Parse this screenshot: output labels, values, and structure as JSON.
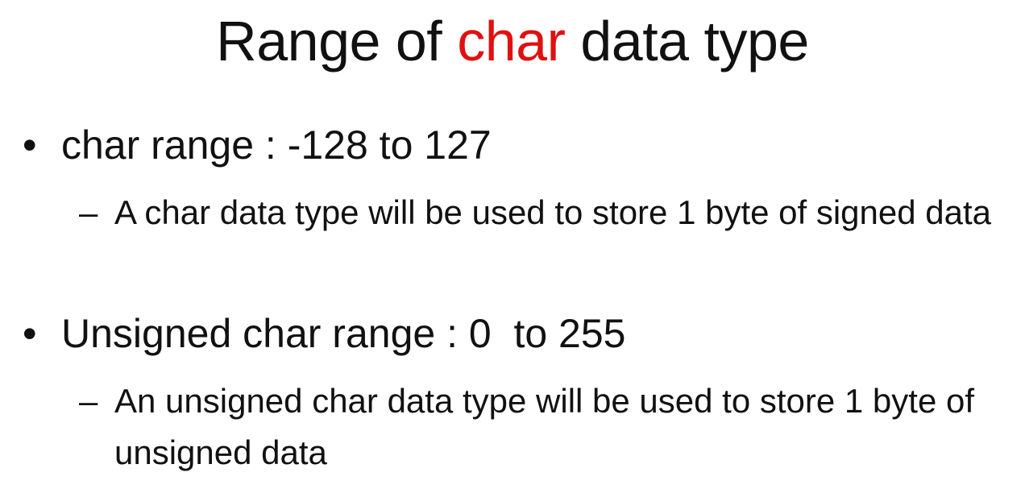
{
  "slide": {
    "title": {
      "before": "Range of ",
      "highlight": "char",
      "after": " data type",
      "highlight_color": "#e01010"
    },
    "bullets": [
      {
        "marker": "•",
        "text": "char range : -128 to 127",
        "sub": {
          "marker": "–",
          "text": "A char data type will be used to store 1 byte of signed data"
        }
      },
      {
        "marker": "•",
        "text": "Unsigned char range : 0  to 255",
        "sub": {
          "marker": "–",
          "text": "An unsigned char data type will be used to store 1 byte of unsigned data"
        }
      }
    ]
  }
}
